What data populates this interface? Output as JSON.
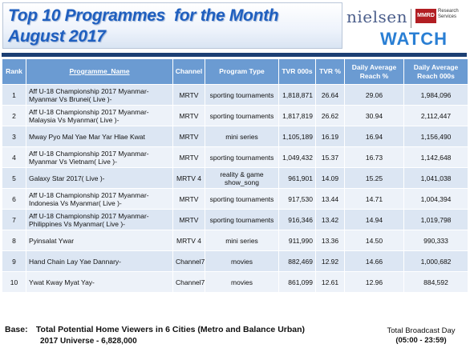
{
  "title": {
    "line1": "Top 10 Programmes  for the Month",
    "line2": "August 2017"
  },
  "logo": {
    "nielsen": "nielsen",
    "mmrd": "MMRD",
    "research_services": "Research Services",
    "watch": "WATCH"
  },
  "colors": {
    "header_bg": "#6b9bd2",
    "row_odd": "#dce6f3",
    "row_even": "#edf2f9",
    "divider": "#1c3f73",
    "title_text": "#1f5fbf",
    "watch_text": "#2a7fd4"
  },
  "table": {
    "headers": {
      "rank": "Rank",
      "programme": "Programme_Name",
      "channel": "Channel",
      "type": "Program Type",
      "tvr000": "TVR 000s",
      "tvrpct": "TVR %",
      "reach_pct": "Daily Average Reach %",
      "reach_000": "Daily Average Reach 000s"
    },
    "rows": [
      {
        "rank": "1",
        "programme": "Aff U-18 Championship 2017 Myanmar-Myanmar Vs Brunei( Live )-",
        "channel": "MRTV",
        "type": "sporting tournaments",
        "tvr000": "1,818,871",
        "tvrpct": "26.64",
        "reach_pct": "29.06",
        "reach_000": "1,984,096"
      },
      {
        "rank": "2",
        "programme": "Aff U-18 Championship 2017 Myanmar-Malaysia Vs Myanmar( Live )-",
        "channel": "MRTV",
        "type": "sporting tournaments",
        "tvr000": "1,817,819",
        "tvrpct": "26.62",
        "reach_pct": "30.94",
        "reach_000": "2,112,447"
      },
      {
        "rank": "3",
        "programme": "Mway Pyo Mal Yae Mar Yar Hlae Kwat",
        "channel": "MRTV",
        "type": "mini series",
        "tvr000": "1,105,189",
        "tvrpct": "16.19",
        "reach_pct": "16.94",
        "reach_000": "1,156,490"
      },
      {
        "rank": "4",
        "programme": "Aff U-18 Championship 2017 Myanmar-Myanmar Vs Vietnam( Live )-",
        "channel": "MRTV",
        "type": "sporting tournaments",
        "tvr000": "1,049,432",
        "tvrpct": "15.37",
        "reach_pct": "16.73",
        "reach_000": "1,142,648"
      },
      {
        "rank": "5",
        "programme": "Galaxy Star 2017( Live )-",
        "channel": "MRTV 4",
        "type": "reality & game show_song",
        "tvr000": "961,901",
        "tvrpct": "14.09",
        "reach_pct": "15.25",
        "reach_000": "1,041,038"
      },
      {
        "rank": "6",
        "programme": "Aff U-18 Championship 2017 Myanmar-Indonesia Vs Myanmar( Live )-",
        "channel": "MRTV",
        "type": "sporting tournaments",
        "tvr000": "917,530",
        "tvrpct": "13.44",
        "reach_pct": "14.71",
        "reach_000": "1,004,394"
      },
      {
        "rank": "7",
        "programme": "Aff U-18 Championship 2017 Myanmar-Philippines Vs Myanmar( Live )-",
        "channel": "MRTV",
        "type": "sporting tournaments",
        "tvr000": "916,346",
        "tvrpct": "13.42",
        "reach_pct": "14.94",
        "reach_000": "1,019,798"
      },
      {
        "rank": "8",
        "programme": "Pyinsalat Ywar",
        "channel": "MRTV 4",
        "type": "mini series",
        "tvr000": "911,990",
        "tvrpct": "13.36",
        "reach_pct": "14.50",
        "reach_000": "990,333"
      },
      {
        "rank": "9",
        "programme": "Hand Chain Lay Yae Dannary-",
        "channel": "Channel7",
        "type": "movies",
        "tvr000": "882,469",
        "tvrpct": "12.92",
        "reach_pct": "14.66",
        "reach_000": "1,000,682"
      },
      {
        "rank": "10",
        "programme": "Ywat Kway Myat Yay-",
        "channel": "Channel7",
        "type": "movies",
        "tvr000": "861,099",
        "tvrpct": "12.61",
        "reach_pct": "12.96",
        "reach_000": "884,592"
      }
    ]
  },
  "footer": {
    "base_label": "Base:",
    "base_text": "Total Potential Home Viewers in 6 Cities (Metro and Balance Urban)",
    "universe": "2017 Universe - 6,828,000",
    "broadcast_day": "Total Broadcast Day",
    "broadcast_hours": "(05:00 - 23:59)"
  }
}
